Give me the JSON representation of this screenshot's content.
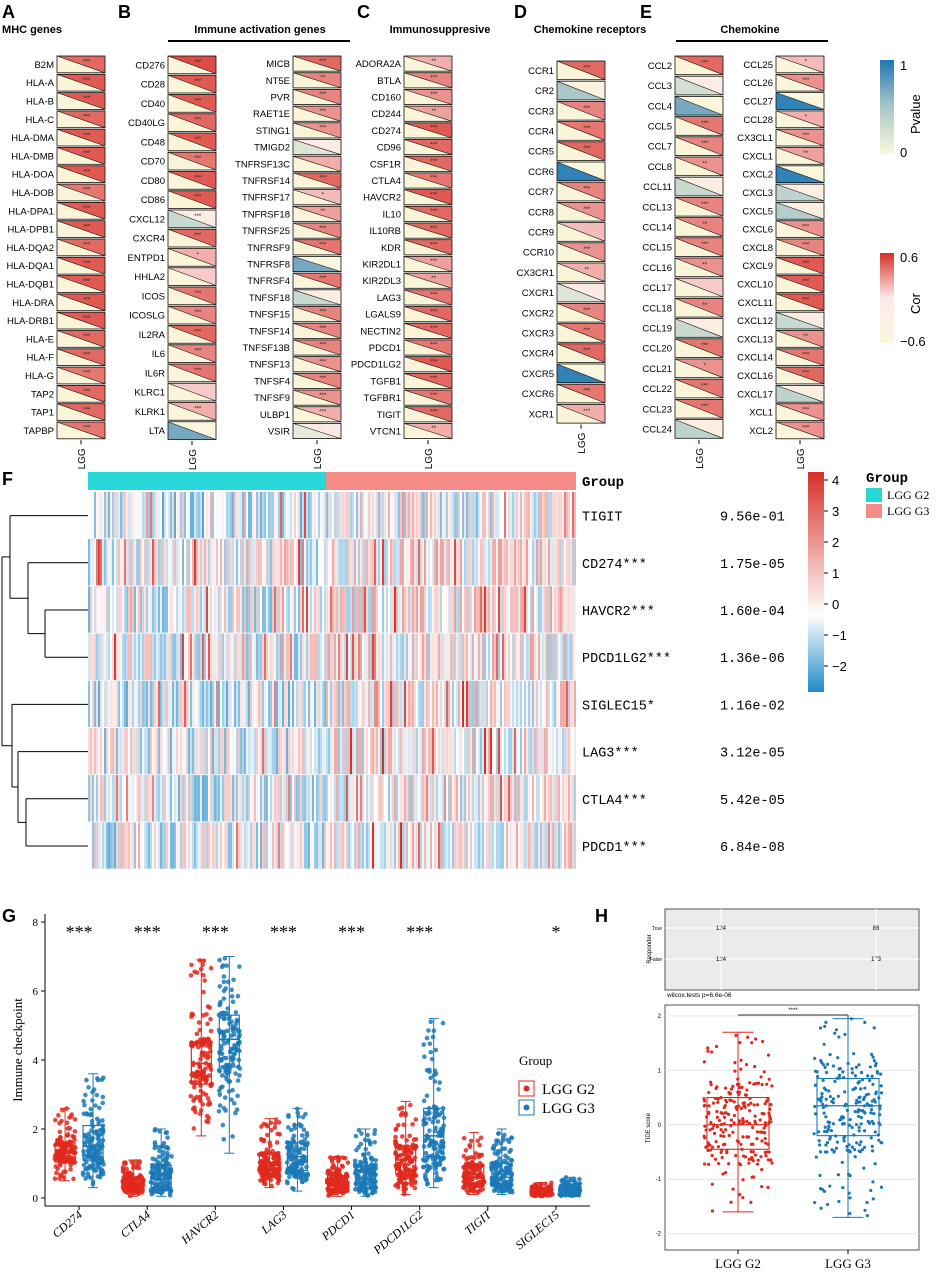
{
  "panel_letters": [
    "A",
    "B",
    "C",
    "D",
    "E",
    "F",
    "G",
    "H"
  ],
  "colors": {
    "pos": "#e06060",
    "neg": "#4a8bc2",
    "pos_fill": "#f3b3b3",
    "neg_fill": "#b5cfe2",
    "cream": "#fbf7dc",
    "cyan": "#28d7d8",
    "salmon": "#f48b86",
    "g2": "#e0291d",
    "g3": "#1b79b7",
    "heat_hi": "#d73027",
    "heat_lo": "#1f8bc7"
  },
  "corr_panels": [
    {
      "letter": "A",
      "title": "MHC genes",
      "axis": "LGG",
      "columns": [
        {
          "genes": [
            "B2M",
            "HLA-A",
            "HLA-B",
            "HLA-C",
            "HLA-DMA",
            "HLA-DMB",
            "HLA-DOA",
            "HLA-DOB",
            "HLA-DPA1",
            "HLA-DPB1",
            "HLA-DQA2",
            "HLA-DQA1",
            "HLA-DQB1",
            "HLA-DRA",
            "HLA-DRB1",
            "HLA-E",
            "HLA-F",
            "HLA-G",
            "TAP2",
            "TAP1",
            "TAPBP"
          ],
          "cor": [
            0.45,
            0.5,
            0.5,
            0.45,
            0.5,
            0.5,
            0.5,
            0.4,
            0.5,
            0.5,
            0.45,
            0.5,
            0.5,
            0.5,
            0.5,
            0.45,
            0.45,
            0.4,
            0.45,
            0.45,
            0.4
          ],
          "sig": [
            "***",
            "***",
            "***",
            "***",
            "***",
            "***",
            "***",
            "***",
            "***",
            "***",
            "***",
            "***",
            "***",
            "***",
            "***",
            "***",
            "***",
            "***",
            "***",
            "***",
            "***"
          ]
        }
      ]
    },
    {
      "letter": "B",
      "title": "Immune activation genes",
      "axis": "LGG",
      "columns": [
        {
          "genes": [
            "CD276",
            "CD28",
            "CD40",
            "CD40LG",
            "CD48",
            "CD70",
            "CD80",
            "CD86",
            "CXCL12",
            "CXCR4",
            "ENTPD1",
            "HHLA2",
            "ICOS",
            "ICOSLG",
            "IL2RA",
            "IL6",
            "IL6R",
            "KLRC1",
            "KLRK1",
            "LTA"
          ],
          "cor": [
            0.55,
            0.5,
            0.5,
            0.45,
            0.5,
            0.4,
            0.5,
            0.5,
            -0.25,
            0.45,
            0.2,
            0.1,
            0.4,
            0.35,
            0.45,
            0.35,
            0.4,
            0.1,
            0.2,
            -0.55
          ],
          "sig": [
            "***",
            "***",
            "***",
            "***",
            "***",
            "***",
            "***",
            "***",
            "***",
            "***",
            "*",
            "",
            "***",
            "***",
            "***",
            "***",
            "***",
            "",
            "***",
            ""
          ]
        },
        {
          "genes": [
            "MICB",
            "NT5E",
            "PVR",
            "RAET1E",
            "STING1",
            "TMIGD2",
            "TNFRSF13C",
            "TNFRSF14",
            "TNFRSF17",
            "TNFRSF18",
            "TNFRSF25",
            "TNFRSF9",
            "TNFRSF8",
            "TNFRSF4",
            "TNFSF18",
            "TNFSF15",
            "TNFSF14",
            "TNFSF13B",
            "TNFSF13",
            "TNFSF4",
            "TNFSF9",
            "ULBP1",
            "VSIR"
          ],
          "cor": [
            0.45,
            0.35,
            0.35,
            0.3,
            0.3,
            -0.15,
            0.2,
            0.45,
            0.15,
            0.25,
            0.35,
            0.4,
            -0.55,
            0.4,
            -0.25,
            0.35,
            0.35,
            0.35,
            0.3,
            0.35,
            0.3,
            0.2,
            -0.1
          ],
          "sig": [
            "***",
            "**",
            "***",
            "***",
            "***",
            "",
            "",
            "***",
            "*",
            "**",
            "***",
            "***",
            "",
            "***",
            "",
            "***",
            "***",
            "***",
            "***",
            "***",
            "***",
            "***",
            ""
          ]
        }
      ]
    },
    {
      "letter": "C",
      "title": "Immunosuppresive",
      "axis": "LGG",
      "columns": [
        {
          "genes": [
            "ADORA2A",
            "BTLA",
            "CD160",
            "CD244",
            "CD274",
            "CD96",
            "CSF1R",
            "CTLA4",
            "HAVCR2",
            "IL10",
            "IL10RB",
            "KDR",
            "KIR2DL1",
            "KIR2DL3",
            "LAG3",
            "LGALS9",
            "NECTIN2",
            "PDCD1",
            "PDCD1LG2",
            "TGFB1",
            "TGFBR1",
            "TIGIT",
            "VTCN1"
          ],
          "cor": [
            0.2,
            0.35,
            0.3,
            0.25,
            0.5,
            0.45,
            0.45,
            0.4,
            0.5,
            0.45,
            0.45,
            0.45,
            0.25,
            0.25,
            0.4,
            0.45,
            0.45,
            0.4,
            0.5,
            0.45,
            0.4,
            0.45,
            0.2
          ],
          "sig": [
            "**",
            "***",
            "***",
            "**",
            "***",
            "***",
            "***",
            "***",
            "***",
            "***",
            "***",
            "***",
            "***",
            "**",
            "***",
            "***",
            "***",
            "***",
            "***",
            "***",
            "***",
            "***",
            "**"
          ]
        }
      ]
    },
    {
      "letter": "D",
      "title": "Chemokine receptors",
      "axis": "LGG",
      "columns": [
        {
          "genes": [
            "CCR1",
            "CR2",
            "CCR3",
            "CCR4",
            "CCR5",
            "CCR6",
            "CCR7",
            "CCR8",
            "CCR9",
            "CCR10",
            "CX3CR1",
            "CXCR1",
            "CXCR2",
            "CXCR3",
            "CXCR4",
            "CXCR5",
            "CXCR6",
            "XCR1"
          ],
          "cor": [
            0.45,
            -0.4,
            0.35,
            0.4,
            0.45,
            -0.75,
            0.35,
            0.3,
            0.15,
            0.3,
            0.2,
            -0.15,
            0.35,
            0.4,
            0.45,
            -0.75,
            0.4,
            0.2
          ],
          "sig": [
            "***",
            "",
            "***",
            "***",
            "***",
            "",
            "***",
            "***",
            "",
            "***",
            "**",
            "",
            "***",
            "***",
            "***",
            "",
            "***",
            "***"
          ]
        }
      ]
    },
    {
      "letter": "E",
      "title": "Chemokine",
      "axis": "LGG",
      "columns": [
        {
          "genes": [
            "CCL2",
            "CCL3",
            "CCL4",
            "CCL5",
            "CCL7",
            "CCL8",
            "CCL11",
            "CCL13",
            "CCL14",
            "CCL15",
            "CCL16",
            "CCL17",
            "CCL18",
            "CCL19",
            "CCL20",
            "CCL21",
            "CCL22",
            "CCL23",
            "CCL24"
          ],
          "cor": [
            0.45,
            -0.2,
            -0.55,
            0.4,
            0.35,
            0.3,
            -0.25,
            0.35,
            0.35,
            0.35,
            0.3,
            0.1,
            0.35,
            -0.25,
            0.4,
            0.3,
            0.4,
            0.4,
            -0.3
          ],
          "sig": [
            "***",
            "",
            "",
            "***",
            "***",
            "**",
            "",
            "***",
            "**",
            "***",
            "**",
            "",
            "**",
            "",
            "***",
            "*",
            "***",
            "***",
            ""
          ]
        },
        {
          "genes": [
            "CCL25",
            "CCL26",
            "CCL27",
            "CCL28",
            "CX3CL1",
            "CXCL1",
            "CXCL2",
            "CXCL3",
            "CXCL5",
            "CXCL6",
            "CXCL8",
            "CXCL9",
            "CXCL10",
            "CXCL11",
            "CXCL12",
            "CXCL13",
            "CXCL14",
            "CXCL16",
            "CXCL17",
            "XCL1",
            "XCL2"
          ],
          "cor": [
            0.15,
            0.3,
            -0.75,
            0.2,
            0.3,
            0.25,
            -0.75,
            -0.3,
            -0.35,
            0.3,
            0.35,
            0.5,
            0.5,
            0.5,
            -0.25,
            0.3,
            0.4,
            0.45,
            -0.3,
            0.3,
            0.3
          ],
          "sig": [
            "*",
            "***",
            "",
            "*",
            "***",
            "**",
            "",
            "",
            "",
            "***",
            "***",
            "***",
            "***",
            "***",
            "",
            "**",
            "***",
            "***",
            "",
            "***",
            "***"
          ]
        }
      ]
    }
  ],
  "legend_p": {
    "title": "Pvalue",
    "max": "1",
    "min": "0"
  },
  "legend_cor": {
    "title": "Cor",
    "max": "0.6",
    "min": "−0.6"
  },
  "heatmap": {
    "group_label": "Group",
    "legend_title": "Group",
    "legend_items": [
      "LGG G2",
      "LGG G3"
    ],
    "colorbar_ticks": [
      "4",
      "3",
      "2",
      "1",
      "0",
      "−1",
      "−2"
    ],
    "genes": [
      {
        "label": "TIGIT",
        "p": "9.56e-01"
      },
      {
        "label": "CD274***",
        "p": "1.75e-05"
      },
      {
        "label": "HAVCR2***",
        "p": "1.60e-04"
      },
      {
        "label": "PDCD1LG2***",
        "p": "1.36e-06"
      },
      {
        "label": "SIGLEC15*",
        "p": "1.16e-02"
      },
      {
        "label": "LAG3***",
        "p": "3.12e-05"
      },
      {
        "label": "CTLA4***",
        "p": "5.42e-05"
      },
      {
        "label": "PDCD1***",
        "p": "6.84e-08"
      }
    ]
  },
  "chart_data": [
    {
      "type": "box",
      "panel": "G",
      "ylabel": "Immune checkpoint",
      "ylim": [
        0,
        8
      ],
      "yticks": [
        "0",
        "2",
        "4",
        "6",
        "8"
      ],
      "categories": [
        "CD274",
        "CTLA4",
        "HAVCR2",
        "LAG3",
        "PDCD1",
        "PDCD1LG2",
        "TIGIT",
        "SIGLEC15"
      ],
      "significance": [
        "***",
        "***",
        "***",
        "***",
        "***",
        "***",
        "",
        "*"
      ],
      "legend_title": "Group",
      "legend_items": [
        "LGG G2",
        "LGG G3"
      ],
      "series": [
        {
          "name": "LGG G2",
          "boxes": [
            [
              0.5,
              1.1,
              1.3,
              1.6,
              2.6
            ],
            [
              0.05,
              0.25,
              0.4,
              0.6,
              1.1
            ],
            [
              1.8,
              3.3,
              3.9,
              4.5,
              6.9
            ],
            [
              0.3,
              0.7,
              0.95,
              1.3,
              2.3
            ],
            [
              0.05,
              0.25,
              0.4,
              0.65,
              1.2
            ],
            [
              0.1,
              0.7,
              1.1,
              1.5,
              2.8
            ],
            [
              0.1,
              0.4,
              0.6,
              0.95,
              1.9
            ],
            [
              0.05,
              0.12,
              0.18,
              0.25,
              0.45
            ]
          ]
        },
        {
          "name": "LGG G3",
          "boxes": [
            [
              0.3,
              1.1,
              1.5,
              2.1,
              3.6
            ],
            [
              0.05,
              0.3,
              0.55,
              0.95,
              2.0
            ],
            [
              1.3,
              3.8,
              4.6,
              5.3,
              7.0
            ],
            [
              0.2,
              0.8,
              1.2,
              1.6,
              2.6
            ],
            [
              0.05,
              0.3,
              0.55,
              0.95,
              2.0
            ],
            [
              0.3,
              1.2,
              1.8,
              2.6,
              5.2
            ],
            [
              0.1,
              0.4,
              0.6,
              1.0,
              2.0
            ],
            [
              0.05,
              0.12,
              0.2,
              0.3,
              0.6
            ]
          ]
        }
      ]
    },
    {
      "type": "table",
      "panel": "H-top",
      "ylabel": "Responder",
      "rows": [
        "True",
        "False"
      ],
      "columns": [
        "LGG G2",
        "LGG G3"
      ],
      "values": [
        [
          124,
          88
        ],
        [
          124,
          173
        ]
      ]
    },
    {
      "type": "box",
      "panel": "H",
      "ylabel": "TIDE score",
      "test_label": "wilcox.tests p=6.6e-06",
      "sig": "****",
      "ylim": [
        -2.3,
        2.2
      ],
      "yticks": [
        "2",
        "1",
        "0",
        "-1",
        "-2"
      ],
      "categories": [
        "LGG G2",
        "LGG G3"
      ],
      "boxes": [
        [
          -1.6,
          -0.45,
          0.0,
          0.5,
          1.7
        ],
        [
          -1.7,
          -0.2,
          0.35,
          0.85,
          1.95
        ]
      ]
    }
  ]
}
